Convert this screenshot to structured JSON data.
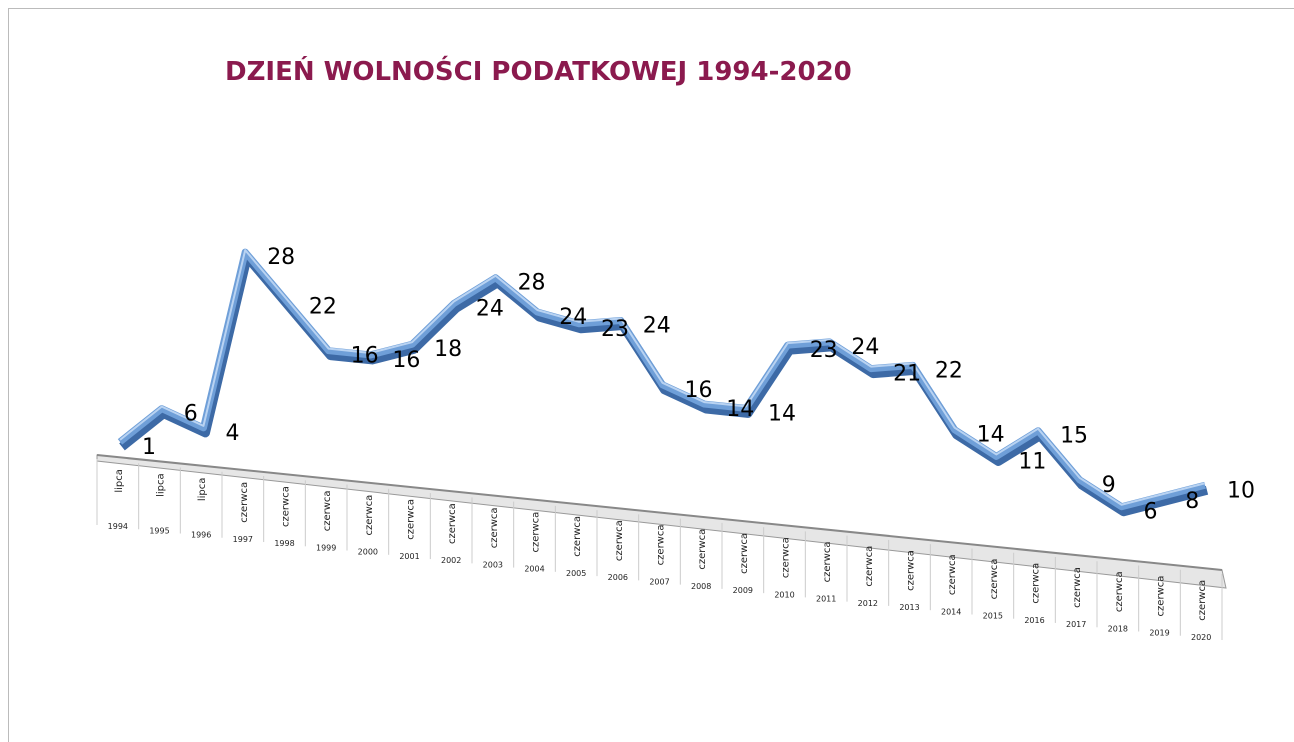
{
  "chart_data": {
    "type": "line",
    "title": "DZIEŃ WOLNOŚCI PODATKOWEJ 1994-2020",
    "categories": [
      "1994",
      "1995",
      "1996",
      "1997",
      "1998",
      "1999",
      "2000",
      "2001",
      "2002",
      "2003",
      "2004",
      "2005",
      "2006",
      "2007",
      "2008",
      "2009",
      "2010",
      "2011",
      "2012",
      "2013",
      "2014",
      "2015",
      "2016",
      "2017",
      "2018",
      "2019",
      "2020"
    ],
    "category_months": [
      "lipca",
      "lipca",
      "lipca",
      "czerwca",
      "czerwca",
      "czerwca",
      "czerwca",
      "czerwca",
      "czerwca",
      "czerwca",
      "czerwca",
      "czerwca",
      "czerwca",
      "czerwca",
      "czerwca",
      "czerwca",
      "czerwca",
      "czerwca",
      "czerwca",
      "czerwca",
      "czerwca",
      "czerwca",
      "czerwca",
      "czerwca",
      "czerwca",
      "czerwca",
      "czerwca"
    ],
    "values": [
      1,
      6,
      4,
      28,
      22,
      16,
      16,
      18,
      24,
      28,
      24,
      23,
      24,
      16,
      14,
      14,
      23,
      24,
      21,
      22,
      14,
      11,
      15,
      9,
      6,
      8,
      10
    ],
    "color": "#6f9fd8",
    "title_color": "#8b1a4e"
  }
}
